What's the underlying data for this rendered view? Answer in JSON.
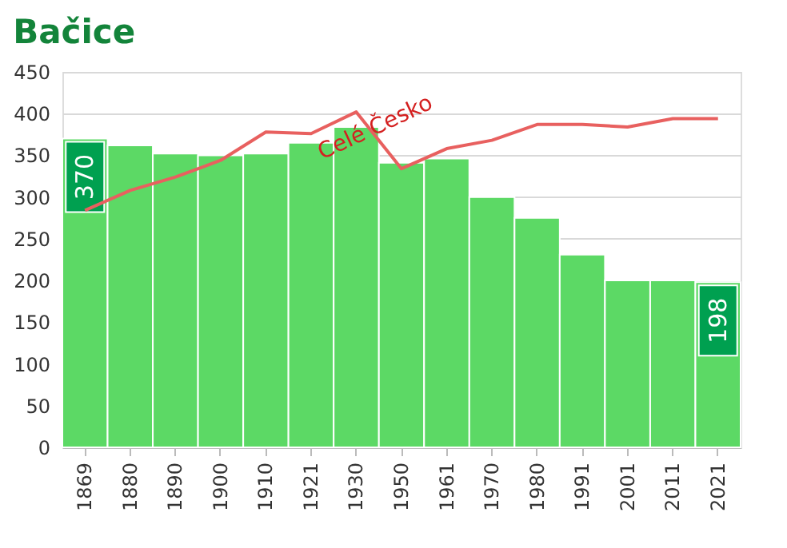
{
  "chart_data": {
    "type": "bar",
    "title": "Bačice",
    "categories": [
      "1869",
      "1880",
      "1890",
      "1900",
      "1910",
      "1921",
      "1930",
      "1950",
      "1961",
      "1970",
      "1980",
      "1991",
      "2001",
      "2011",
      "2021"
    ],
    "series": [
      {
        "color": "#5cd965",
        "values": [
          370,
          362,
          352,
          350,
          352,
          365,
          384,
          341,
          346,
          300,
          275,
          231,
          200,
          200,
          198
        ],
        "value_labels": [
          "370",
          null,
          null,
          null,
          null,
          null,
          null,
          null,
          null,
          null,
          null,
          null,
          null,
          null,
          "198"
        ]
      },
      {
        "type": "line",
        "name": "Celé Česko",
        "color": "#e8605f",
        "values": [
          284,
          308,
          324,
          344,
          378,
          376,
          402,
          334,
          358,
          368,
          387,
          387,
          384,
          394,
          394
        ]
      }
    ],
    "ylim": [
      0,
      450
    ],
    "yticks": [
      0,
      50,
      100,
      150,
      200,
      250,
      300,
      350,
      400,
      450
    ],
    "grid": "y"
  }
}
